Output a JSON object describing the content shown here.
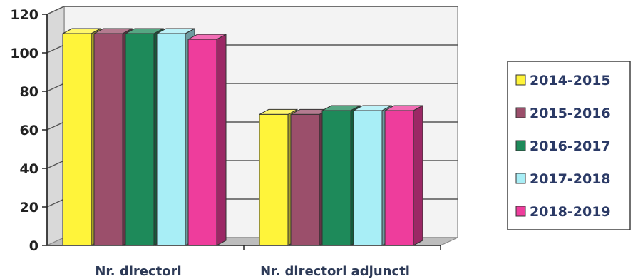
{
  "chart_data": {
    "type": "bar",
    "style": "3d-clustered-column",
    "title": "",
    "xlabel": "",
    "ylabel": "",
    "categories": [
      "Nr. directori",
      "Nr. directori adjuncti"
    ],
    "ylim": [
      0,
      120
    ],
    "yticks": [
      0,
      20,
      40,
      60,
      80,
      100,
      120
    ],
    "grid": true,
    "legend_position": "right",
    "series": [
      {
        "name": "2014-2015",
        "values": [
          110,
          68
        ],
        "color": "#fff43a"
      },
      {
        "name": "2015-2016",
        "values": [
          110,
          68
        ],
        "color": "#9b4f6b"
      },
      {
        "name": "2016-2017",
        "values": [
          110,
          70
        ],
        "color": "#1e8a5a"
      },
      {
        "name": "2017-2018",
        "values": [
          110,
          70
        ],
        "color": "#a8eef6"
      },
      {
        "name": "2018-2019",
        "values": [
          107,
          70
        ],
        "color": "#ee3d9c"
      }
    ]
  }
}
